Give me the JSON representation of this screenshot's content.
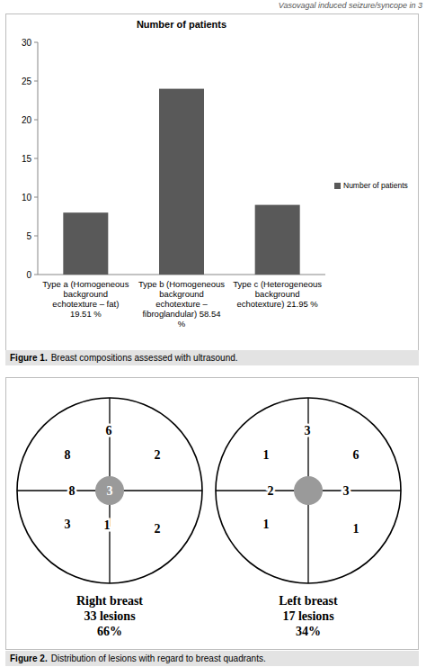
{
  "header": {
    "running_title": "Vasovagal induced seizure/syncope in 3"
  },
  "chart_data": {
    "type": "bar",
    "title": "Number of patients",
    "categories": [
      "Type a (Homogeneous background echotexture – fat) 19.51 %",
      "Type b (Homogeneous background echotexture – fibroglandular) 58.54 %",
      "Type c (Heterogeneous background echotexture) 21.95 %"
    ],
    "series": [
      {
        "name": "Number of patients",
        "color": "#595959",
        "values": [
          8,
          24,
          9
        ]
      }
    ],
    "ylim": [
      0,
      30
    ],
    "yticks": [
      0,
      5,
      10,
      15,
      20,
      25,
      30
    ],
    "grid": false,
    "legend": "right"
  },
  "figure1_caption": {
    "label": "Figure 1.",
    "text": "Breast compositions assessed with ultrasound."
  },
  "diagram": {
    "breasts": [
      {
        "label": "Right breast",
        "lesions": "33 lesions",
        "share": "66%",
        "counts": [
          8,
          6,
          2,
          8,
          3,
          null,
          3,
          1,
          2
        ]
      },
      {
        "label": "Left breast",
        "lesions": "17 lesions",
        "share": "34%",
        "counts": [
          1,
          3,
          6,
          2,
          null,
          3,
          1,
          null,
          1
        ]
      }
    ]
  },
  "figure2_caption": {
    "label": "Figure 2.",
    "text": "Distribution of lesions with regard to breast quadrants."
  }
}
